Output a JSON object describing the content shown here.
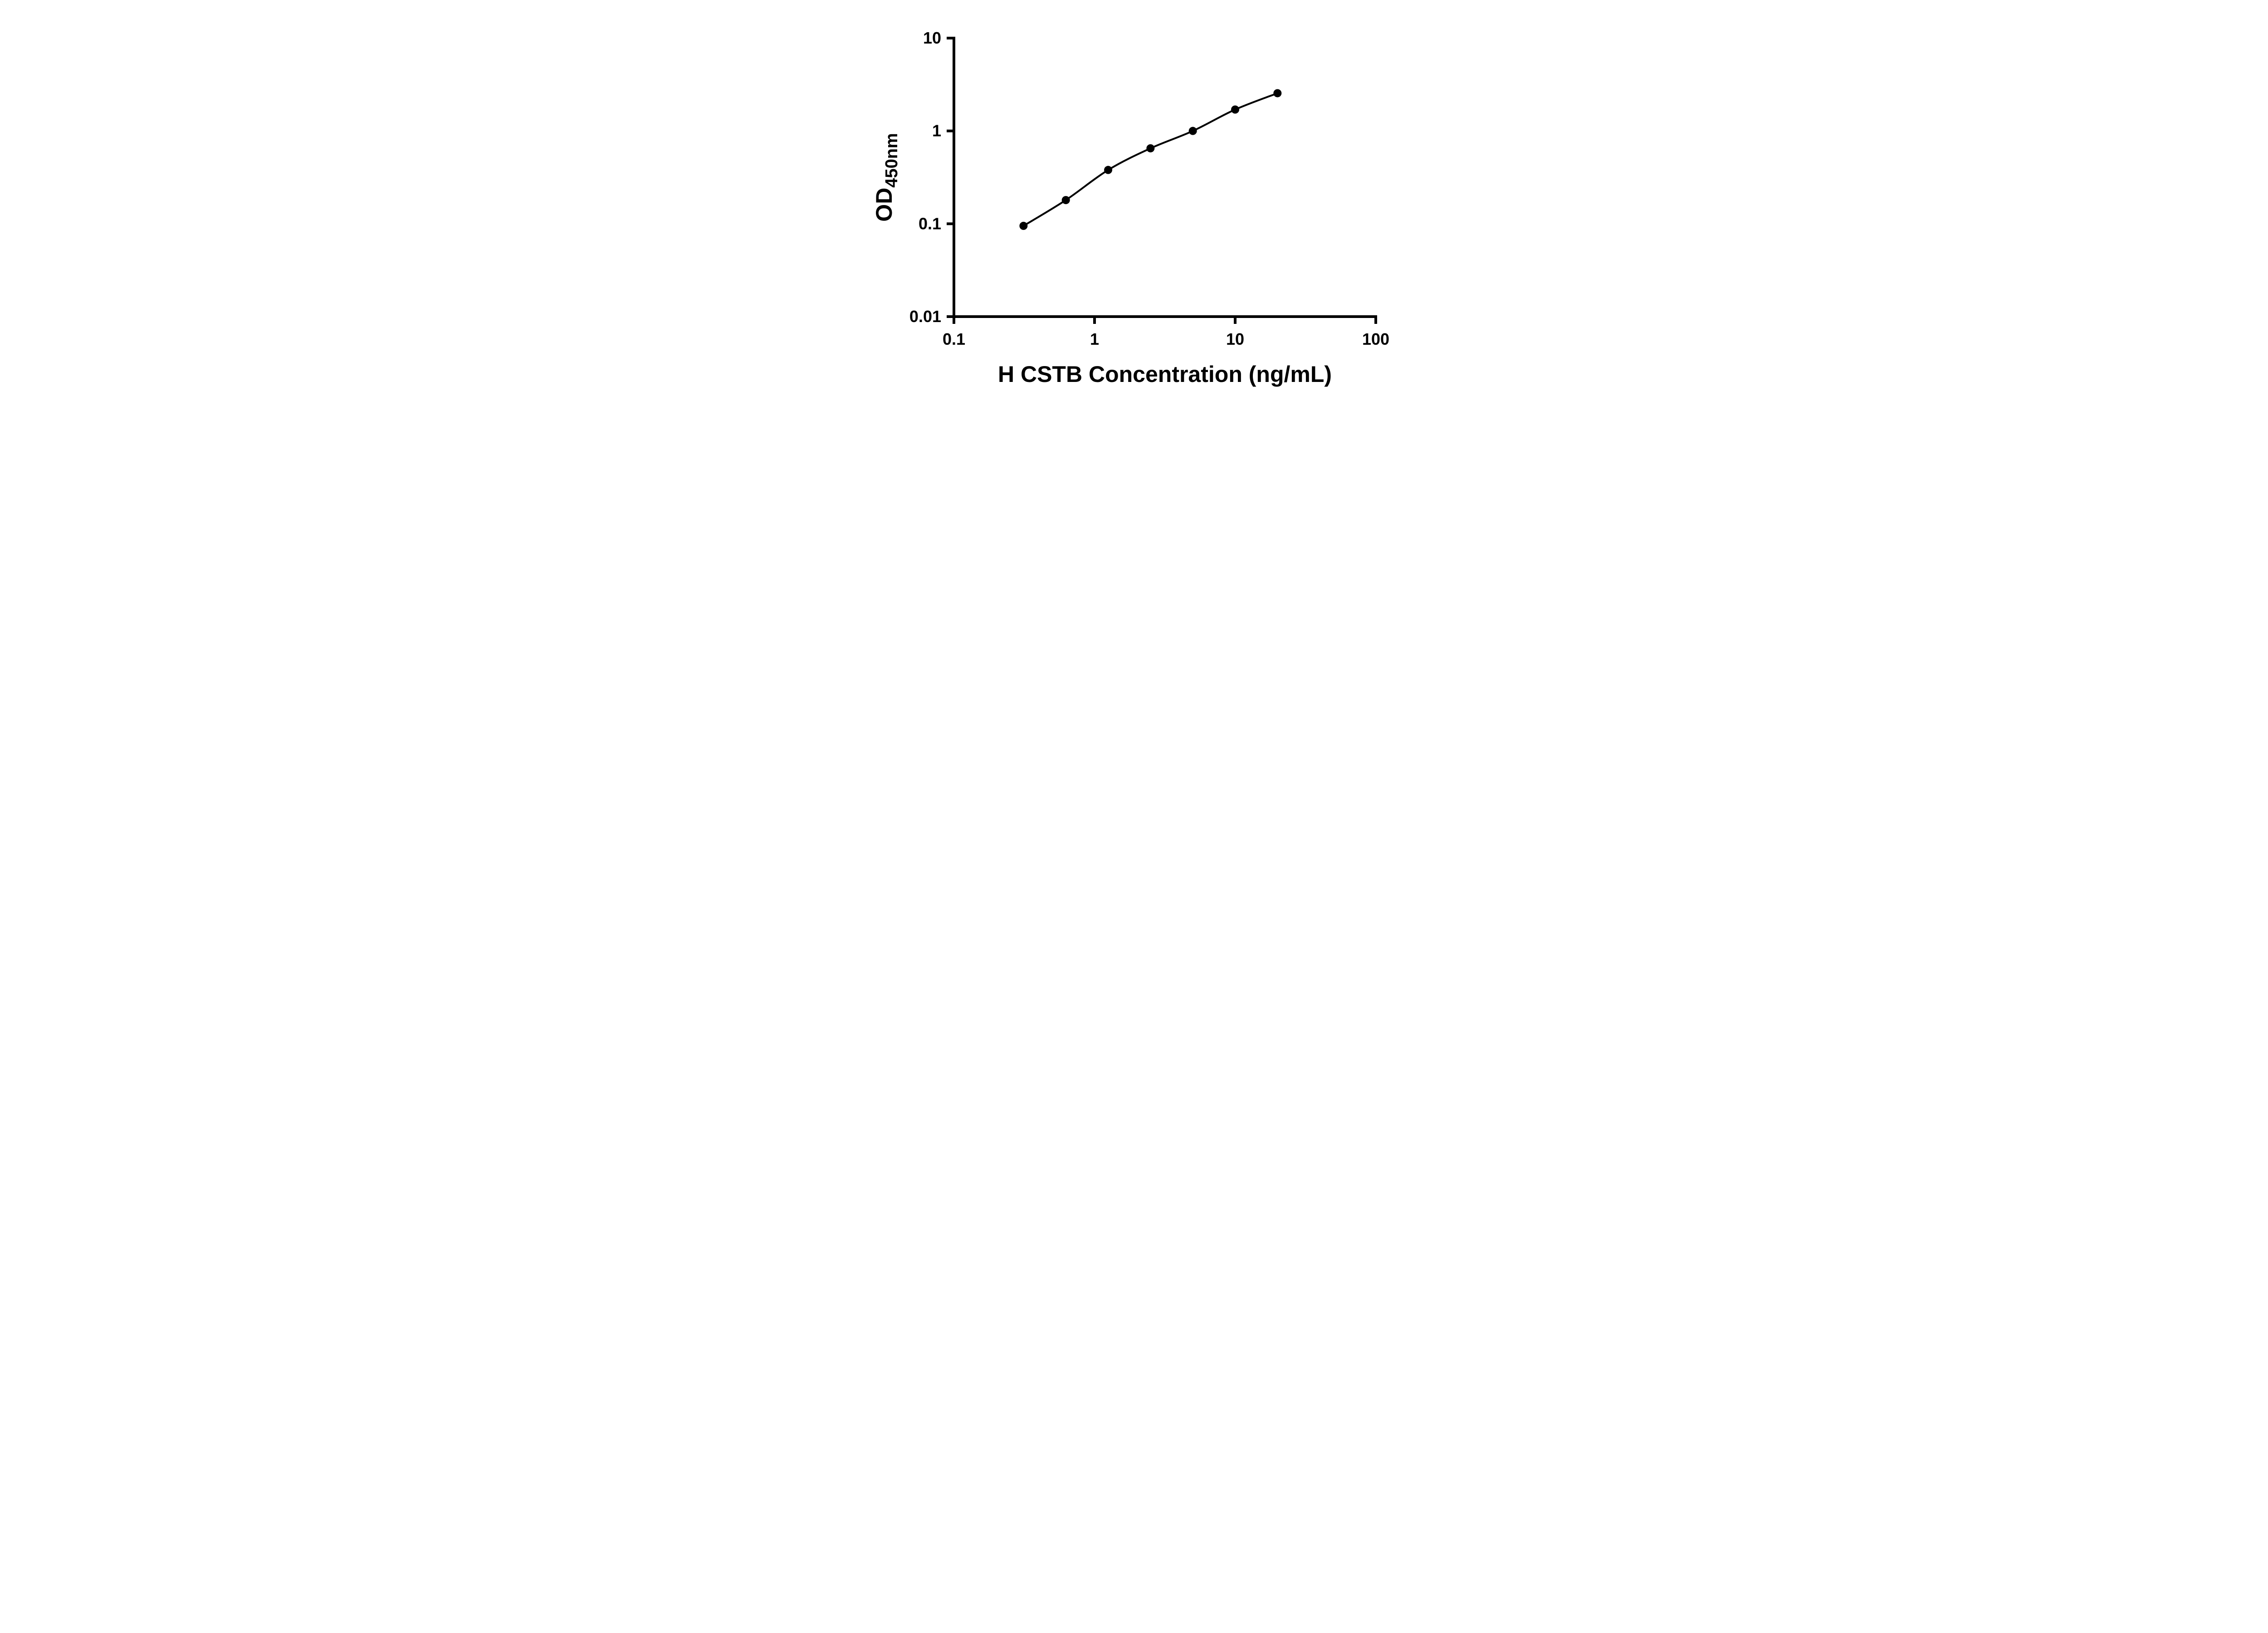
{
  "figure": {
    "background_color": "#ffffff",
    "axis_color": "#000000",
    "marker_color": "#000000",
    "line_color": "#000000"
  },
  "chart_data": {
    "type": "scatter",
    "title": "",
    "xlabel": "H CSTB Concentration (ng/mL)",
    "ylabel": "OD",
    "ylabel_subscript": "450nm",
    "x_scale": "log",
    "y_scale": "log",
    "xlim": [
      0.1,
      100
    ],
    "ylim": [
      0.01,
      10
    ],
    "grid": false,
    "legend": false,
    "fit_line": true,
    "marker_radius": 9,
    "x_ticks": [
      {
        "value": 0.1,
        "label": "0.1"
      },
      {
        "value": 1,
        "label": "1"
      },
      {
        "value": 10,
        "label": "10"
      },
      {
        "value": 100,
        "label": "100"
      }
    ],
    "y_ticks": [
      {
        "value": 0.01,
        "label": "0.01"
      },
      {
        "value": 0.1,
        "label": "0.1"
      },
      {
        "value": 1,
        "label": "1"
      },
      {
        "value": 10,
        "label": "10"
      }
    ],
    "points": [
      {
        "x": 0.3125,
        "y": 0.095
      },
      {
        "x": 0.625,
        "y": 0.18
      },
      {
        "x": 1.25,
        "y": 0.38
      },
      {
        "x": 2.5,
        "y": 0.65
      },
      {
        "x": 5,
        "y": 1.0
      },
      {
        "x": 10,
        "y": 1.7
      },
      {
        "x": 20,
        "y": 2.55
      }
    ]
  }
}
